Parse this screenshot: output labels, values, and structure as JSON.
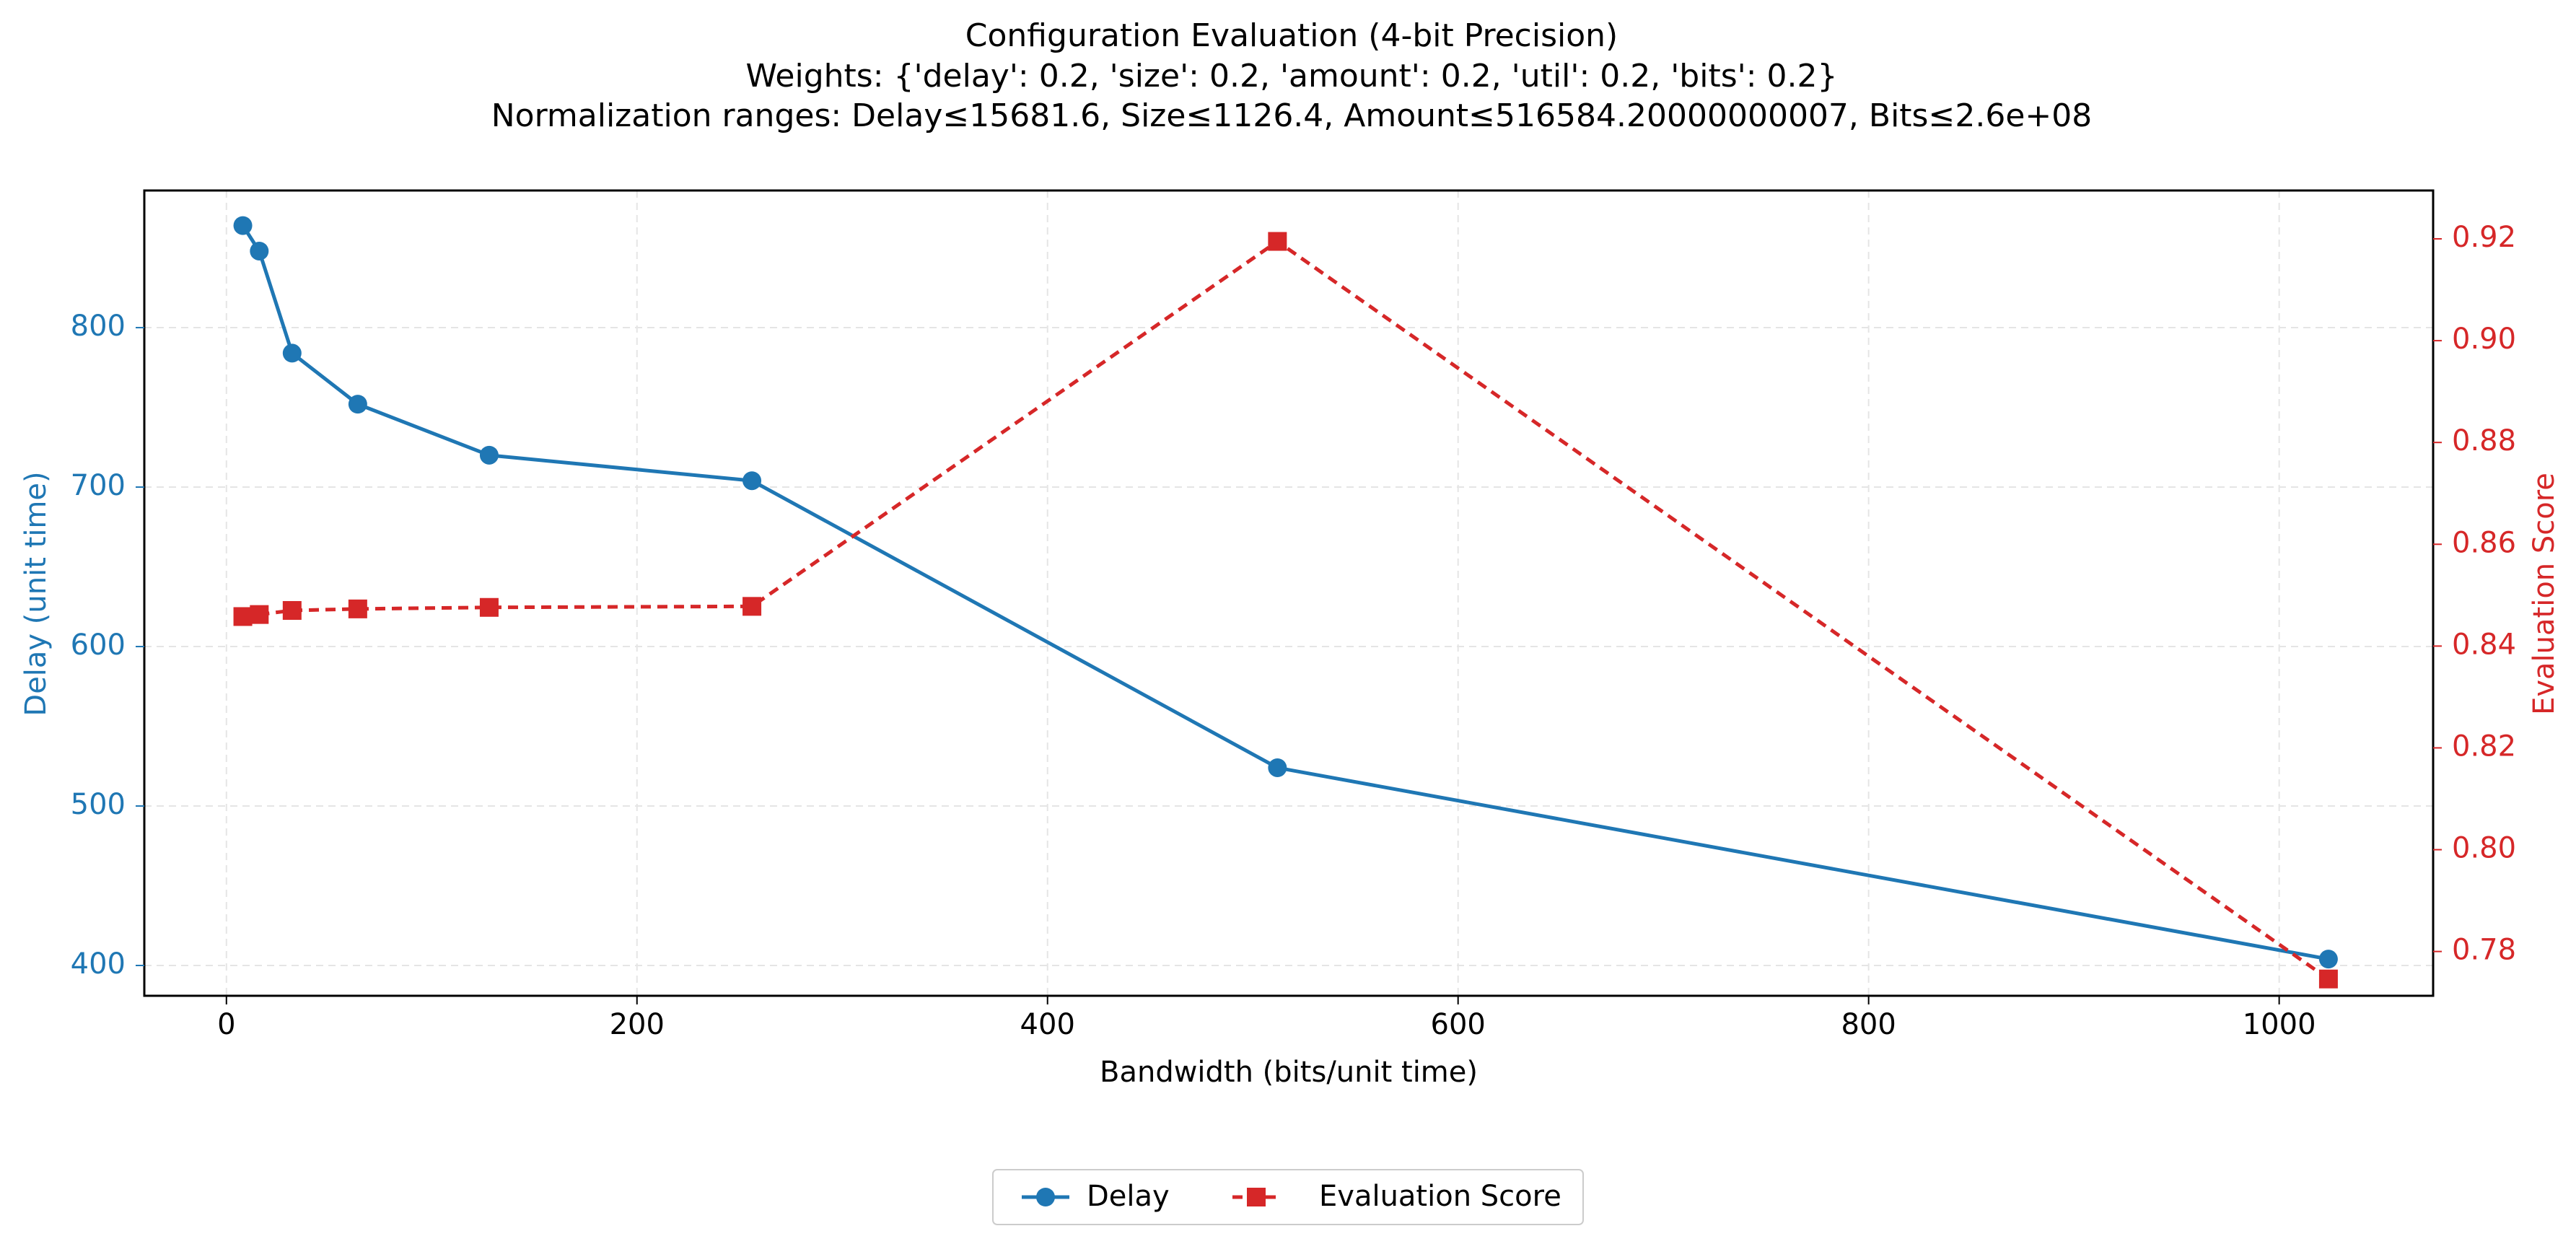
{
  "chart_data": {
    "type": "line",
    "title": "Configuration Evaluation (4-bit Precision)",
    "subtitle_lines": [
      "Weights: {'delay': 0.2, 'size': 0.2, 'amount': 0.2, 'util': 0.2, 'bits': 0.2}",
      "Normalization ranges: Delay≤15681.6, Size≤1126.4, Amount≤516584.20000000007, Bits≤2.6e+08"
    ],
    "xlabel": "Bandwidth (bits/unit time)",
    "ylabel_left": "Delay (unit time)",
    "ylabel_right": "Evaluation Score",
    "xlim": [
      -40,
      1075
    ],
    "ylim_left": [
      381,
      886
    ],
    "ylim_right": [
      0.7713,
      0.9295
    ],
    "x_ticks": [
      0,
      200,
      400,
      600,
      800,
      1000
    ],
    "y_left_ticks": [
      400,
      500,
      600,
      700,
      800
    ],
    "y_right_ticks": [
      0.78,
      0.8,
      0.82,
      0.84,
      0.86,
      0.88,
      0.9,
      0.92
    ],
    "grid": true,
    "legend_position": "bottom-center",
    "series": [
      {
        "name": "Delay",
        "axis": "left",
        "color": "#1f77b4",
        "line_style": "solid",
        "marker": "circle",
        "x": [
          8,
          16,
          32,
          64,
          128,
          256,
          512,
          1024
        ],
        "y": [
          864,
          848,
          784,
          752,
          720,
          704,
          524,
          404
        ]
      },
      {
        "name": "Evaluation Score",
        "axis": "right",
        "color": "#d62728",
        "line_style": "dashed",
        "marker": "square",
        "x": [
          8,
          16,
          32,
          64,
          128,
          256,
          512,
          1024
        ],
        "y": [
          0.8458,
          0.8462,
          0.847,
          0.8473,
          0.8476,
          0.8478,
          0.9195,
          0.7746
        ]
      }
    ]
  },
  "colors": {
    "left_axis": "#1f77b4",
    "right_axis": "#d62728",
    "grid": "#e5e5e5",
    "axis_line": "#000000"
  }
}
